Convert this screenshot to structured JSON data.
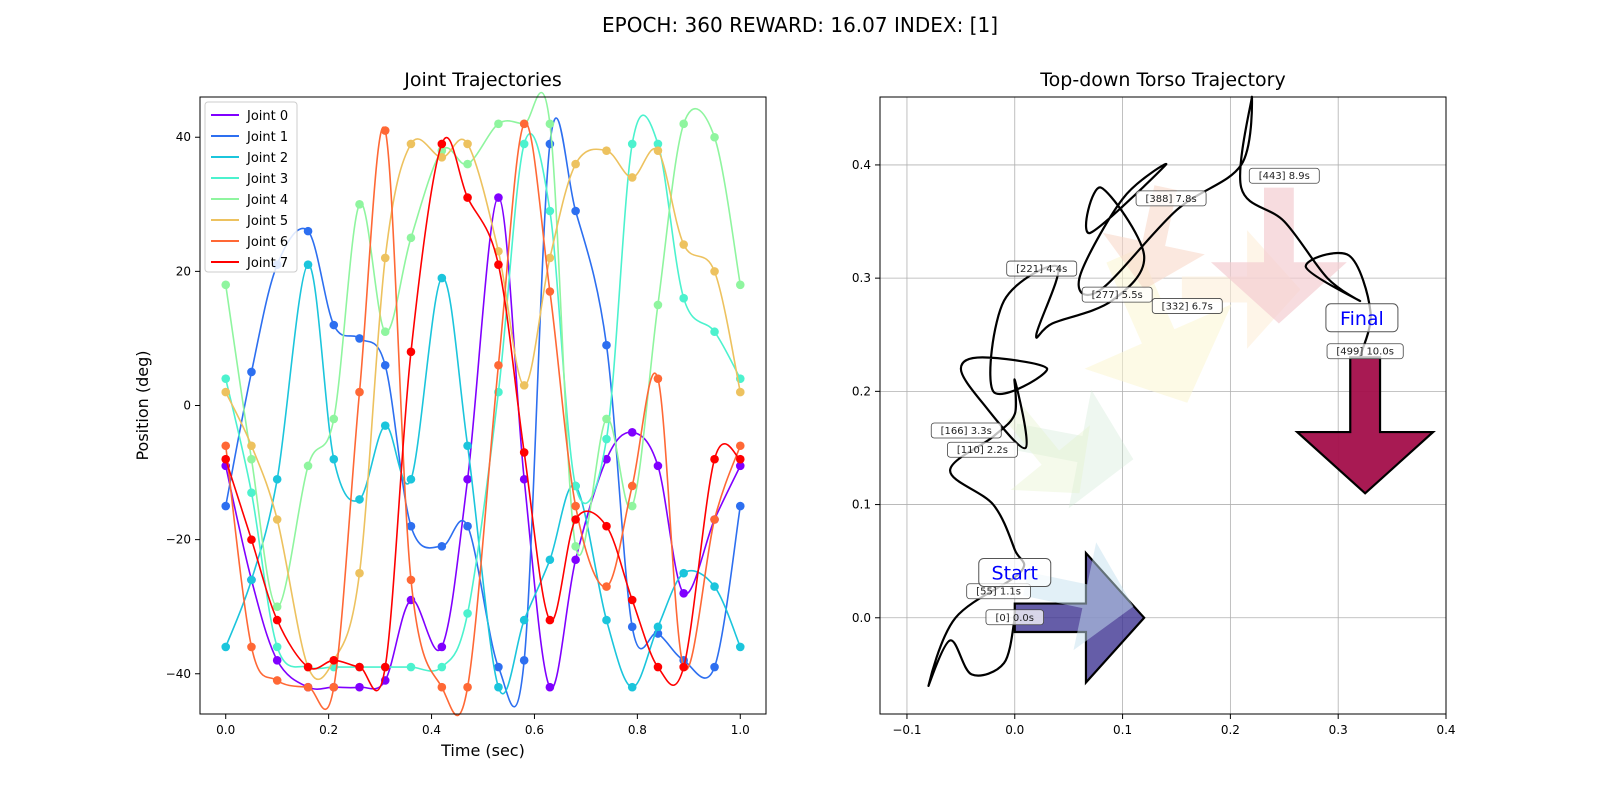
{
  "figure": {
    "suptitle": "EPOCH: 360 REWARD:  16.07 INDEX: [1]"
  },
  "chart_data": [
    {
      "type": "line",
      "title": "Joint Trajectories",
      "xlabel": "Time (sec)",
      "ylabel": "Position (deg)",
      "xlim": [
        -0.05,
        1.05
      ],
      "ylim": [
        -46,
        46
      ],
      "xticks": [
        "0.0",
        "0.2",
        "0.4",
        "0.6",
        "0.8",
        "1.0"
      ],
      "yticks": [
        "-40",
        "-20",
        "0",
        "20",
        "40"
      ],
      "grid": false,
      "legend_position": "top-left",
      "x": [
        0.0,
        0.05,
        0.1,
        0.16,
        0.21,
        0.26,
        0.31,
        0.36,
        0.42,
        0.47,
        0.53,
        0.58,
        0.63,
        0.68,
        0.74,
        0.79,
        0.84,
        0.89,
        0.95,
        1.0
      ],
      "series": [
        {
          "name": "Joint 0",
          "color": "#8000ff",
          "values": [
            -9,
            -26,
            -38,
            -42,
            -42,
            -42,
            -41,
            -29,
            -36,
            -11,
            31,
            -11,
            -42,
            -23,
            -8,
            -4,
            -9,
            -28,
            -17,
            -9
          ]
        },
        {
          "name": "Joint 1",
          "color": "#2d6ff0",
          "values": [
            -15,
            5,
            21,
            26,
            12,
            10,
            6,
            -18,
            -21,
            -18,
            -39,
            -38,
            39,
            29,
            9,
            -33,
            -34,
            -38,
            -39,
            -15
          ]
        },
        {
          "name": "Joint 2",
          "color": "#1bc5dc",
          "values": [
            -36,
            -26,
            -11,
            21,
            -8,
            -14,
            -3,
            -11,
            19,
            -6,
            -42,
            -32,
            -23,
            -12,
            -32,
            -42,
            -33,
            -25,
            -27,
            -36
          ]
        },
        {
          "name": "Joint 3",
          "color": "#4cf2ce",
          "values": [
            4,
            -13,
            -36,
            -39,
            -39,
            -39,
            -39,
            -39,
            -39,
            -31,
            2,
            39,
            29,
            -12,
            -5,
            39,
            39,
            16,
            11,
            4
          ]
        },
        {
          "name": "Joint 4",
          "color": "#8ff59f",
          "values": [
            18,
            -8,
            -30,
            -9,
            -2,
            30,
            11,
            25,
            38,
            36,
            42,
            42,
            42,
            -21,
            -2,
            -15,
            15,
            42,
            40,
            18
          ]
        },
        {
          "name": "Joint 5",
          "color": "#edc25f",
          "values": [
            2,
            -6,
            -17,
            -39,
            -38,
            -25,
            22,
            39,
            37,
            39,
            23,
            3,
            22,
            36,
            38,
            34,
            38,
            24,
            20,
            2
          ]
        },
        {
          "name": "Joint 6",
          "color": "#ff6835",
          "values": [
            -6,
            -36,
            -41,
            -42,
            -42,
            2,
            41,
            -26,
            -42,
            -42,
            6,
            42,
            17,
            -15,
            -27,
            -12,
            4,
            -39,
            -17,
            -6
          ]
        },
        {
          "name": "Joint 7",
          "color": "#ff0000",
          "values": [
            -8,
            -20,
            -32,
            -39,
            -38,
            -39,
            -39,
            8,
            39,
            31,
            21,
            -7,
            -32,
            -17,
            -18,
            -29,
            -39,
            -39,
            -8,
            -8
          ]
        }
      ]
    },
    {
      "type": "line",
      "title": "Top-down Torso Trajectory",
      "xlim": [
        -0.125,
        0.4
      ],
      "ylim": [
        -0.085,
        0.46
      ],
      "xticks": [
        "−0.1",
        "0.0",
        "0.1",
        "0.2",
        "0.3",
        "0.4"
      ],
      "yticks": [
        "0.0",
        "0.1",
        "0.2",
        "0.3",
        "0.4"
      ],
      "grid": true,
      "path": {
        "color": "#000000",
        "x": [
          0.0,
          -0.01,
          -0.04,
          -0.06,
          -0.08,
          -0.055,
          0.005,
          0.0,
          -0.02,
          -0.06,
          -0.02,
          0.0,
          0.0,
          0.01,
          -0.03,
          -0.05,
          -0.03,
          0.03,
          -0.02,
          -0.01,
          0.04,
          0.02,
          0.035,
          0.09,
          0.12,
          0.08,
          0.07,
          0.14,
          0.1,
          0.06,
          0.08,
          0.15,
          0.21,
          0.22,
          0.21,
          0.25,
          0.29,
          0.32,
          0.27,
          0.31,
          0.33,
          0.32
        ],
        "y": [
          0.0,
          -0.04,
          -0.05,
          -0.02,
          -0.06,
          0.0,
          0.04,
          0.06,
          0.1,
          0.13,
          0.16,
          0.18,
          0.21,
          0.15,
          0.19,
          0.22,
          0.23,
          0.22,
          0.2,
          0.28,
          0.31,
          0.25,
          0.26,
          0.28,
          0.32,
          0.38,
          0.34,
          0.4,
          0.37,
          0.3,
          0.29,
          0.36,
          0.4,
          0.46,
          0.38,
          0.35,
          0.3,
          0.28,
          0.31,
          0.32,
          0.27,
          0.23
        ]
      },
      "markers": [
        {
          "label": "[0] 0.0s",
          "x": 0.0,
          "y": 0.0
        },
        {
          "label": "[55] 1.1s",
          "x": -0.015,
          "y": 0.023
        },
        {
          "label": "[110] 2.2s",
          "x": -0.03,
          "y": 0.148
        },
        {
          "label": "[166] 3.3s",
          "x": -0.045,
          "y": 0.165
        },
        {
          "label": "[221] 4.4s",
          "x": 0.025,
          "y": 0.308
        },
        {
          "label": "[277] 5.5s",
          "x": 0.095,
          "y": 0.285
        },
        {
          "label": "[332] 6.7s",
          "x": 0.16,
          "y": 0.275
        },
        {
          "label": "[388] 7.8s",
          "x": 0.145,
          "y": 0.37
        },
        {
          "label": "[443] 8.9s",
          "x": 0.25,
          "y": 0.39
        },
        {
          "label": "[499] 10.0s",
          "x": 0.325,
          "y": 0.235
        }
      ],
      "annotations": [
        {
          "text": "Start",
          "x": 0.0,
          "y": 0.04
        },
        {
          "text": "Final",
          "x": 0.322,
          "y": 0.265
        }
      ],
      "heading_arrows": [
        {
          "x": 0.0,
          "y": 0.0,
          "dx": 0.12,
          "dy": 0.0,
          "color": "#3f3592",
          "opacity": 0.8
        },
        {
          "x": 0.01,
          "y": 0.03,
          "dx": 0.1,
          "dy": -0.02,
          "color": "#c6e2f0",
          "opacity": 0.5
        },
        {
          "x": 0.0,
          "y": 0.16,
          "dx": 0.11,
          "dy": -0.02,
          "color": "#cfe7d3",
          "opacity": 0.35
        },
        {
          "x": 0.0,
          "y": 0.18,
          "dx": 0.06,
          "dy": -0.07,
          "color": "#e2f0c6",
          "opacity": 0.35
        },
        {
          "x": 0.1,
          "y": 0.32,
          "dx": 0.06,
          "dy": -0.13,
          "color": "#fbf6d2",
          "opacity": 0.55
        },
        {
          "x": 0.155,
          "y": 0.29,
          "dx": 0.11,
          "dy": 0.0,
          "color": "#fdeed8",
          "opacity": 0.6
        },
        {
          "x": 0.14,
          "y": 0.38,
          "dx": -0.02,
          "dy": -0.09,
          "color": "#f8d8c9",
          "opacity": 0.6
        },
        {
          "x": 0.245,
          "y": 0.38,
          "dx": 0.0,
          "dy": -0.12,
          "color": "#f3cdd1",
          "opacity": 0.7
        },
        {
          "x": 0.325,
          "y": 0.23,
          "dx": 0.0,
          "dy": -0.12,
          "color": "#a30e4a",
          "opacity": 0.95
        }
      ]
    }
  ]
}
